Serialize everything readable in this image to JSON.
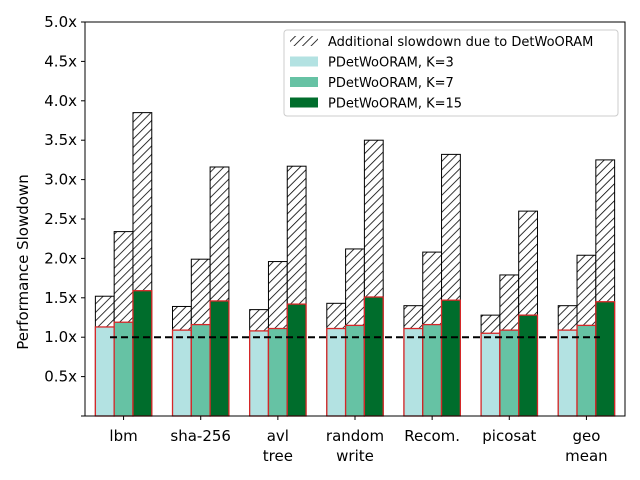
{
  "chart_data": {
    "type": "bar",
    "ylabel": "Performance Slowdown",
    "xlabel": "",
    "ylim": [
      0,
      5.0
    ],
    "yticks": [
      0.5,
      1.0,
      1.5,
      2.0,
      2.5,
      3.0,
      3.5,
      4.0,
      4.5,
      5.0
    ],
    "ytick_labels": [
      "0.5x",
      "1.0x",
      "1.5x",
      "2.0x",
      "2.5x",
      "3.0x",
      "3.5x",
      "4.0x",
      "4.5x",
      "5.0x"
    ],
    "categories": [
      [
        "lbm"
      ],
      [
        "sha-256"
      ],
      [
        "avl",
        "tree"
      ],
      [
        "random",
        "write"
      ],
      [
        "Recom."
      ],
      [
        "picosat"
      ],
      [
        "geo",
        "mean"
      ]
    ],
    "series": [
      {
        "name": "PDetWoORAM, K=3",
        "color": "#b3e2e2",
        "values": [
          1.13,
          1.09,
          1.08,
          1.11,
          1.11,
          1.05,
          1.09
        ]
      },
      {
        "name": "PDetWoORAM, K=7",
        "color": "#66c2a4",
        "values": [
          1.19,
          1.16,
          1.11,
          1.15,
          1.16,
          1.09,
          1.15
        ]
      },
      {
        "name": "PDetWoORAM, K=15",
        "color": "#006d2c",
        "values": [
          1.59,
          1.46,
          1.42,
          1.51,
          1.47,
          1.28,
          1.45
        ]
      }
    ],
    "detworam_total": {
      "name": "Additional slowdown due to DetWoORAM",
      "values": [
        [
          1.52,
          2.34,
          3.85
        ],
        [
          1.39,
          1.99,
          3.16
        ],
        [
          1.35,
          1.96,
          3.17
        ],
        [
          1.43,
          2.12,
          3.5
        ],
        [
          1.4,
          2.08,
          3.32
        ],
        [
          1.28,
          1.79,
          2.6
        ],
        [
          1.4,
          2.04,
          3.25
        ]
      ]
    },
    "reference_line": 1.0,
    "legend_position": "top-right",
    "colors": {
      "pdet_edge": "#d62728",
      "hatch": "#000000"
    }
  }
}
